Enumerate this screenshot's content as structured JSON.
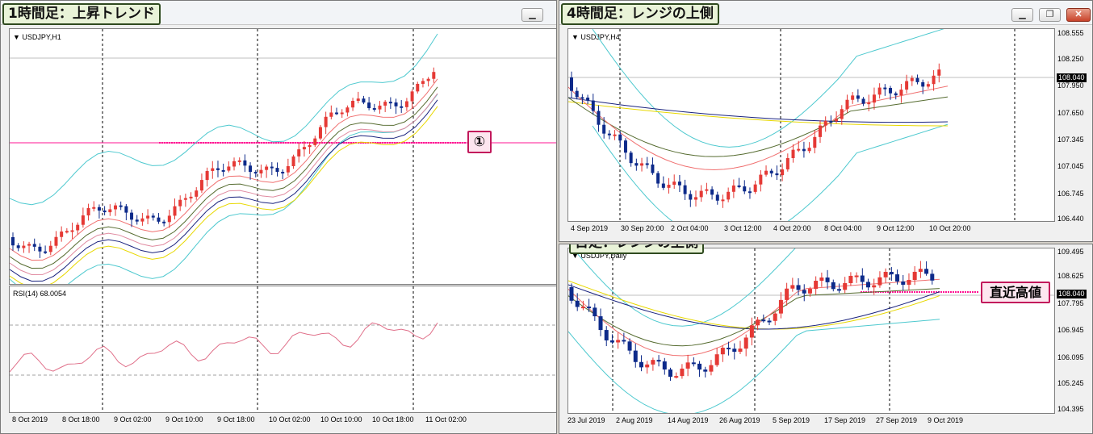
{
  "windows": {
    "h1": {
      "tag": "1時間足：上昇トレンド",
      "symbol": "USDJPY,H1",
      "rsi_label": "RSI(14) 68.0054",
      "callout": "①",
      "dates": [
        "8 Oct 2019",
        "8 Oct 18:00",
        "9 Oct 02:00",
        "9 Oct 10:00",
        "9 Oct 18:00",
        "10 Oct 02:00",
        "10 Oct 10:00",
        "10 Oct 18:00",
        "11 Oct 02:00"
      ]
    },
    "h4": {
      "tag": "4時間足：レンジの上側",
      "symbol": "USDJPY,H4",
      "current_price": "108.040",
      "prices": [
        "108.555",
        "108.250",
        "107.950",
        "107.650",
        "107.345",
        "107.045",
        "106.745",
        "106.440"
      ],
      "dates": [
        "4 Sep 2019",
        "30 Sep 20:00",
        "2 Oct 04:00",
        "3 Oct 12:00",
        "4 Oct 20:00",
        "8 Oct 04:00",
        "9 Oct 12:00",
        "10 Oct 20:00"
      ]
    },
    "daily": {
      "tag": "日足：レンジの上側",
      "symbol": "USDJPY,Daily",
      "current_price": "108.040",
      "callout": "直近高値",
      "prices": [
        "109.495",
        "108.625",
        "107.795",
        "106.945",
        "106.095",
        "105.245",
        "104.395"
      ],
      "dates": [
        "23 Jul 2019",
        "2 Aug 2019",
        "14 Aug 2019",
        "26 Aug 2019",
        "5 Sep 2019",
        "17 Sep 2019",
        "27 Sep 2019",
        "9 Oct 2019"
      ]
    }
  },
  "buttons": {
    "minimize": "▁",
    "restore": "❐",
    "close": "✕"
  },
  "colors": {
    "bull": "#e53935",
    "bear": "#0d2a8a",
    "bands": "#4ec9cf",
    "ma_red": "#f07070",
    "ma_pink": "#e08aa0",
    "ma_olive": "#556b2f",
    "ma_navy": "#1a237e",
    "ma_yellow": "#e8d800",
    "rsi": "#e0708a",
    "hline": "#ff1493"
  }
}
